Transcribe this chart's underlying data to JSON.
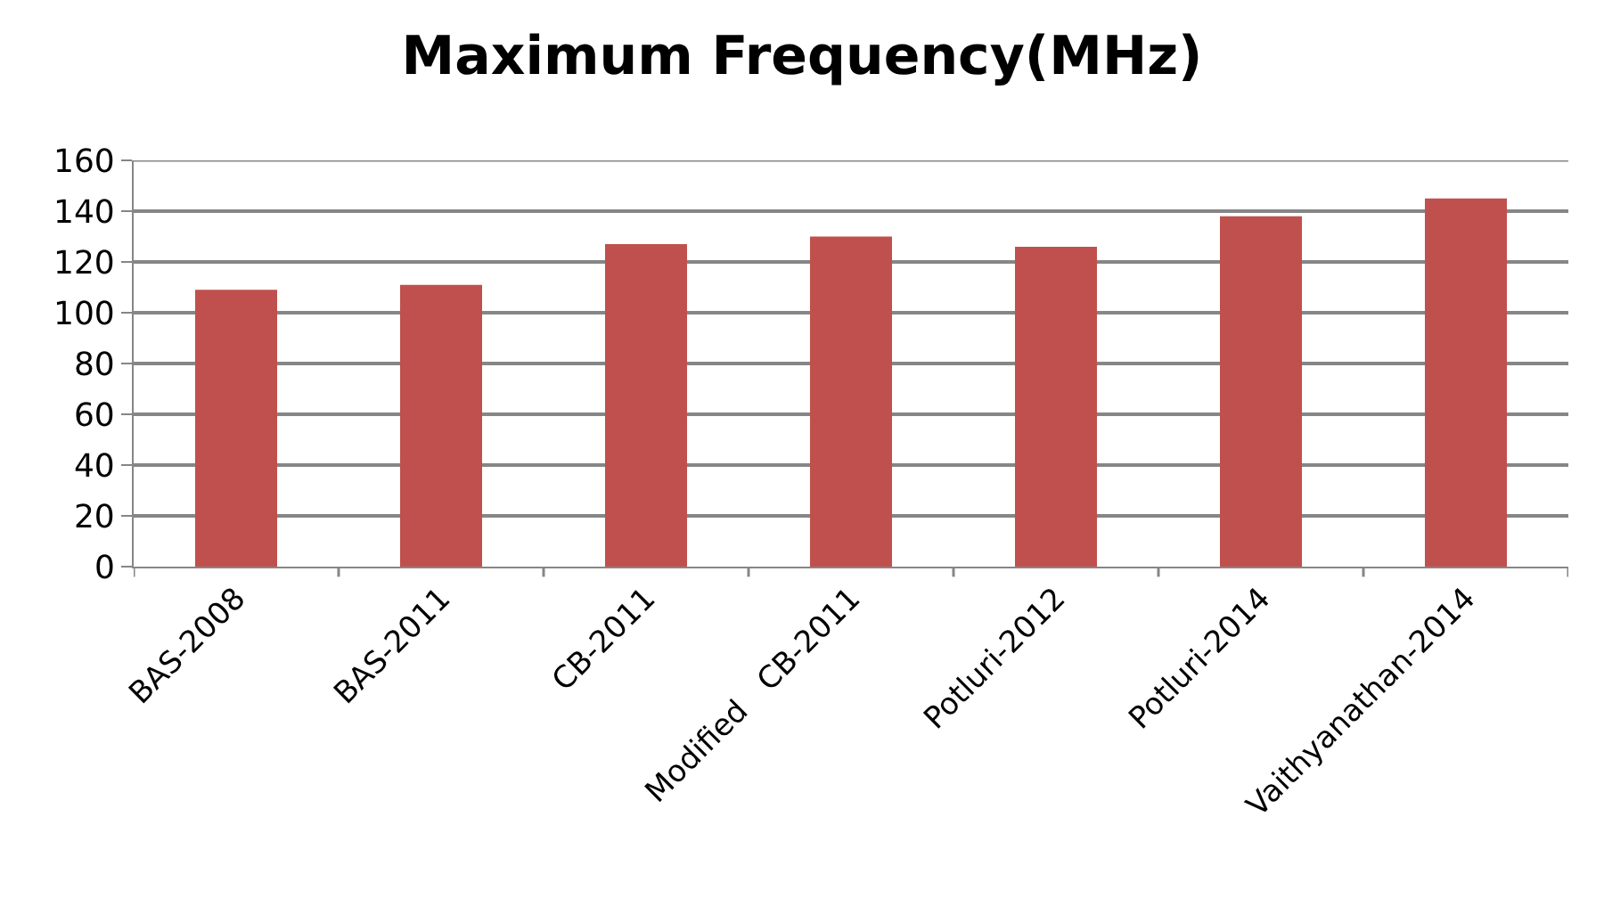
{
  "chart_data": {
    "type": "bar",
    "title": "Maximum Frequency(MHz)",
    "categories": [
      "BAS-2008",
      "BAS-2011",
      "CB-2011",
      "Modified   CB-2011",
      "Potluri-2012",
      "Potluri-2014",
      "Vaithyanathan-2014"
    ],
    "values": [
      109,
      111,
      127,
      130,
      126,
      138,
      145
    ],
    "color": "#c0504d",
    "ylim": [
      0,
      160
    ],
    "yticks": [
      0,
      20,
      40,
      60,
      80,
      100,
      120,
      140,
      160
    ],
    "grid": "y"
  }
}
